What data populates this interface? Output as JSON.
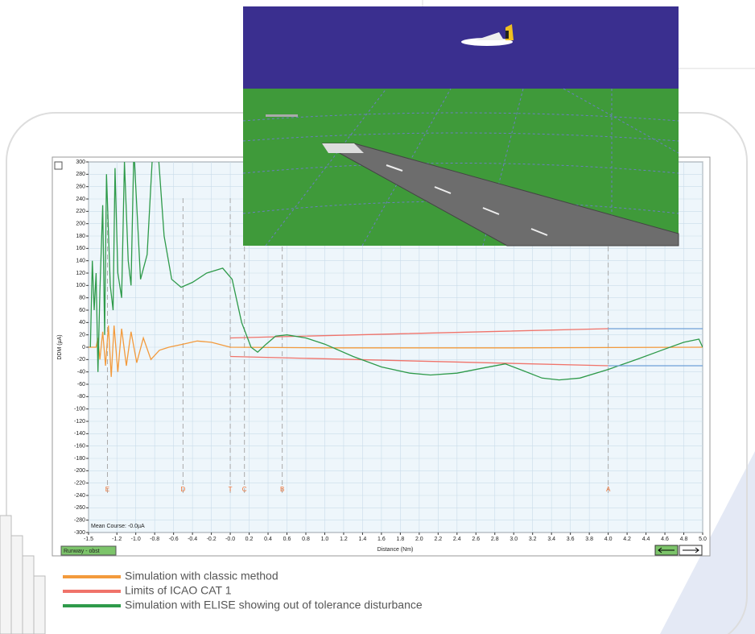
{
  "chart_data": {
    "type": "line",
    "ylabel": "DDM (µA)",
    "xlabel": "Distance (Nm)",
    "annotation": "Mean Course: -0.0µA",
    "status": "Runway - obst",
    "xlim": [
      -1.5,
      5.0
    ],
    "ylim": [
      -300,
      300
    ],
    "xticks": [
      -1.5,
      -1.2,
      {
        "value": -1,
        "label": "-1.0"
      },
      -0.8,
      -0.6,
      -0.4,
      -0.2,
      {
        "value": 0,
        "label": "-0.0"
      },
      0.2,
      0.4,
      0.6,
      0.8,
      {
        "value": 1,
        "label": "1.0"
      },
      1.2,
      1.4,
      1.6,
      1.8,
      {
        "value": 2,
        "label": "2.0"
      },
      2.2,
      2.4,
      2.6,
      2.8,
      {
        "value": 3,
        "label": "3.0"
      },
      3.2,
      3.4,
      3.6,
      3.8,
      {
        "value": 4,
        "label": "4.0"
      },
      4.2,
      4.4,
      4.6,
      4.8,
      {
        "value": 5,
        "label": "5.0"
      }
    ],
    "yticks": [
      300,
      280,
      260,
      240,
      220,
      200,
      180,
      160,
      140,
      120,
      100,
      80,
      60,
      40,
      20,
      0,
      -20,
      -40,
      -60,
      -80,
      -100,
      -120,
      -140,
      -160,
      -180,
      -200,
      -220,
      -240,
      -260,
      -280,
      -300
    ],
    "grid": true,
    "markers": [
      {
        "label": "E",
        "x": -1.3
      },
      {
        "label": "D",
        "x": -0.5
      },
      {
        "label": "T",
        "x": 0.0
      },
      {
        "label": "C",
        "x": 0.15
      },
      {
        "label": "B",
        "x": 0.55
      },
      {
        "label": "A",
        "x": 4.0
      }
    ],
    "series": [
      {
        "name": "Simulation with classic method",
        "color": "#f39a3c",
        "x": [
          -1.5,
          -1.42,
          -1.4,
          -1.38,
          -1.35,
          -1.32,
          -1.29,
          -1.26,
          -1.23,
          -1.19,
          -1.15,
          -1.1,
          -1.05,
          -0.99,
          -0.92,
          -0.84,
          -0.75,
          -0.65,
          -0.5,
          -0.35,
          -0.2,
          0.0,
          1.0,
          3.0,
          5.0
        ],
        "values": [
          0,
          0,
          15,
          -20,
          25,
          -30,
          35,
          -48,
          35,
          -40,
          30,
          -30,
          25,
          -25,
          15,
          -20,
          -5,
          0,
          5,
          10,
          8,
          0,
          -1,
          -1,
          0
        ]
      },
      {
        "name": "Limits of ICAO CAT 1",
        "color": "#f0736a",
        "x": [
          0.0,
          4.0,
          null,
          0.0,
          4.0
        ],
        "values": [
          15,
          30,
          null,
          -15,
          -30
        ]
      },
      {
        "name": "Simulation with ELISE showing out of tolerance disturbance",
        "color": "#2e9a4a",
        "x": [
          -1.48,
          -1.46,
          -1.44,
          -1.42,
          -1.4,
          -1.38,
          -1.35,
          -1.33,
          -1.31,
          -1.27,
          -1.24,
          -1.22,
          -1.19,
          -1.15,
          -1.12,
          -1.08,
          -1.05,
          -1.02,
          -0.95,
          -0.88,
          -0.82,
          -0.77,
          -0.7,
          -0.62,
          -0.52,
          -0.4,
          -0.25,
          -0.08,
          0.02,
          0.12,
          0.22,
          0.29,
          0.38,
          0.48,
          0.6,
          0.8,
          1.0,
          1.3,
          1.6,
          1.9,
          2.12,
          2.4,
          2.7,
          2.91,
          3.1,
          3.3,
          3.48,
          3.7,
          4.0,
          4.3,
          4.6,
          4.8,
          4.96,
          5.0
        ],
        "values": [
          0,
          140,
          60,
          120,
          -40,
          90,
          230,
          20,
          280,
          100,
          60,
          290,
          120,
          80,
          300,
          140,
          100,
          320,
          110,
          150,
          320,
          330,
          180,
          110,
          97,
          105,
          120,
          128,
          110,
          40,
          0,
          -8,
          5,
          18,
          20,
          15,
          5,
          -15,
          -32,
          -42,
          -45,
          -42,
          -33,
          -27,
          -38,
          -50,
          -53,
          -50,
          -36,
          -20,
          -3,
          8,
          13,
          0
        ]
      },
      {
        "color": "#6f9fd8",
        "x": [
          4.0,
          5.0,
          null,
          4.0,
          5.0
        ],
        "values": [
          30,
          30,
          null,
          -30,
          -30
        ]
      }
    ]
  }
}
